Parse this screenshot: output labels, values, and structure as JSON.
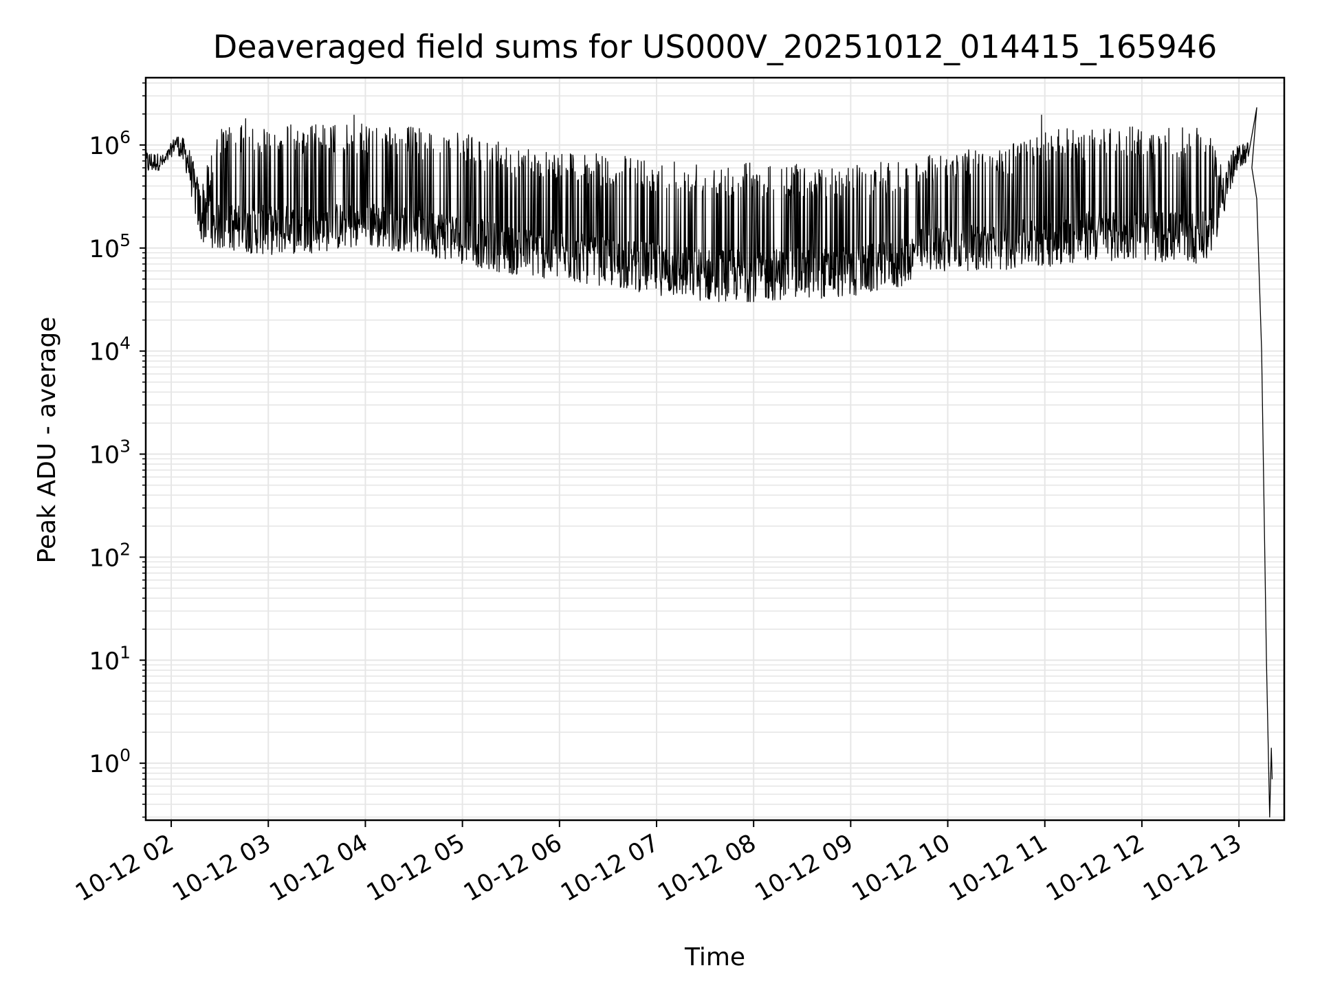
{
  "chart_data": {
    "type": "line",
    "title": "Deaveraged field sums for US000V_20251012_014415_165946",
    "xlabel": "Time",
    "ylabel": "Peak ADU - average",
    "yscale": "log",
    "ylim": [
      0.28,
      4500000.0
    ],
    "xlim": [
      "2025-10-12T01:44:15",
      "2025-10-12T13:28:00"
    ],
    "grid": true,
    "line_color": "#000000",
    "grid_color": "#e6e6e6",
    "x_ticks": [
      {
        "value": "2025-10-12T02:00:00",
        "label": "10-12 02"
      },
      {
        "value": "2025-10-12T03:00:00",
        "label": "10-12 03"
      },
      {
        "value": "2025-10-12T04:00:00",
        "label": "10-12 04"
      },
      {
        "value": "2025-10-12T05:00:00",
        "label": "10-12 05"
      },
      {
        "value": "2025-10-12T06:00:00",
        "label": "10-12 06"
      },
      {
        "value": "2025-10-12T07:00:00",
        "label": "10-12 07"
      },
      {
        "value": "2025-10-12T08:00:00",
        "label": "10-12 08"
      },
      {
        "value": "2025-10-12T09:00:00",
        "label": "10-12 09"
      },
      {
        "value": "2025-10-12T10:00:00",
        "label": "10-12 10"
      },
      {
        "value": "2025-10-12T11:00:00",
        "label": "10-12 11"
      },
      {
        "value": "2025-10-12T12:00:00",
        "label": "10-12 12"
      },
      {
        "value": "2025-10-12T13:00:00",
        "label": "10-12 13"
      }
    ],
    "y_ticks": [
      {
        "value": 1,
        "base": "10",
        "exp": "0"
      },
      {
        "value": 10,
        "base": "10",
        "exp": "1"
      },
      {
        "value": 100,
        "base": "10",
        "exp": "2"
      },
      {
        "value": 1000,
        "base": "10",
        "exp": "3"
      },
      {
        "value": 10000,
        "base": "10",
        "exp": "4"
      },
      {
        "value": 100000,
        "base": "10",
        "exp": "5"
      },
      {
        "value": 1000000,
        "base": "10",
        "exp": "6"
      }
    ],
    "series_envelope": [
      {
        "x": "2025-10-12T01:44:15",
        "low": 500000,
        "high": 900000
      },
      {
        "x": "2025-10-12T01:56:00",
        "low": 600000,
        "high": 800000
      },
      {
        "x": "2025-10-12T02:03:00",
        "low": 900000,
        "high": 1300000
      },
      {
        "x": "2025-10-12T02:10:00",
        "low": 500000,
        "high": 1100000
      },
      {
        "x": "2025-10-12T02:18:00",
        "low": 110000,
        "high": 400000
      },
      {
        "x": "2025-10-12T02:30:00",
        "low": 95000,
        "high": 1500000
      },
      {
        "x": "2025-10-12T03:00:00",
        "low": 85000,
        "high": 1600000
      },
      {
        "x": "2025-10-12T03:30:00",
        "low": 90000,
        "high": 1600000
      },
      {
        "x": "2025-10-12T04:00:00",
        "low": 100000,
        "high": 1600000
      },
      {
        "x": "2025-10-12T04:30:00",
        "low": 90000,
        "high": 1500000
      },
      {
        "x": "2025-10-12T05:00:00",
        "low": 70000,
        "high": 1300000
      },
      {
        "x": "2025-10-12T05:30:00",
        "low": 55000,
        "high": 1000000
      },
      {
        "x": "2025-10-12T06:00:00",
        "low": 48000,
        "high": 900000
      },
      {
        "x": "2025-10-12T06:30:00",
        "low": 42000,
        "high": 800000
      },
      {
        "x": "2025-10-12T07:00:00",
        "low": 35000,
        "high": 750000
      },
      {
        "x": "2025-10-12T07:30:00",
        "low": 30000,
        "high": 700000
      },
      {
        "x": "2025-10-12T08:00:00",
        "low": 30000,
        "high": 700000
      },
      {
        "x": "2025-10-12T08:30:00",
        "low": 32000,
        "high": 650000
      },
      {
        "x": "2025-10-12T09:00:00",
        "low": 33000,
        "high": 650000
      },
      {
        "x": "2025-10-12T09:30:00",
        "low": 40000,
        "high": 700000
      },
      {
        "x": "2025-10-12T09:45:00",
        "low": 60000,
        "high": 800000
      },
      {
        "x": "2025-10-12T10:00:00",
        "low": 60000,
        "high": 900000
      },
      {
        "x": "2025-10-12T10:30:00",
        "low": 60000,
        "high": 900000
      },
      {
        "x": "2025-10-12T11:00:00",
        "low": 65000,
        "high": 1400000
      },
      {
        "x": "2025-10-12T11:30:00",
        "low": 75000,
        "high": 1500000
      },
      {
        "x": "2025-10-12T12:00:00",
        "low": 75000,
        "high": 1500000
      },
      {
        "x": "2025-10-12T12:40:00",
        "low": 70000,
        "high": 1500000
      },
      {
        "x": "2025-10-12T12:48:00",
        "low": 150000,
        "high": 700000
      },
      {
        "x": "2025-10-12T13:00:00",
        "low": 600000,
        "high": 1000000
      },
      {
        "x": "2025-10-12T13:06:00",
        "low": 700000,
        "high": 1100000
      }
    ],
    "series_tail": [
      {
        "x": "2025-10-12T13:08:00",
        "y": 600000
      },
      {
        "x": "2025-10-12T13:11:00",
        "y": 300000
      },
      {
        "x": "2025-10-12T13:14:00",
        "y": 10000
      },
      {
        "x": "2025-10-12T13:17:00",
        "y": 10
      },
      {
        "x": "2025-10-12T13:19:00",
        "y": 0.3
      },
      {
        "x": "2025-10-12T13:20:00",
        "y": 1.4
      },
      {
        "x": "2025-10-12T13:20:30",
        "y": 0.7
      }
    ],
    "spikes": [
      {
        "x": "2025-10-12T02:46:00",
        "y": 1800000
      },
      {
        "x": "2025-10-12T03:53:00",
        "y": 1950000
      },
      {
        "x": "2025-10-12T10:58:00",
        "y": 1950000
      },
      {
        "x": "2025-10-12T13:11:00",
        "y": 2300000
      }
    ]
  }
}
